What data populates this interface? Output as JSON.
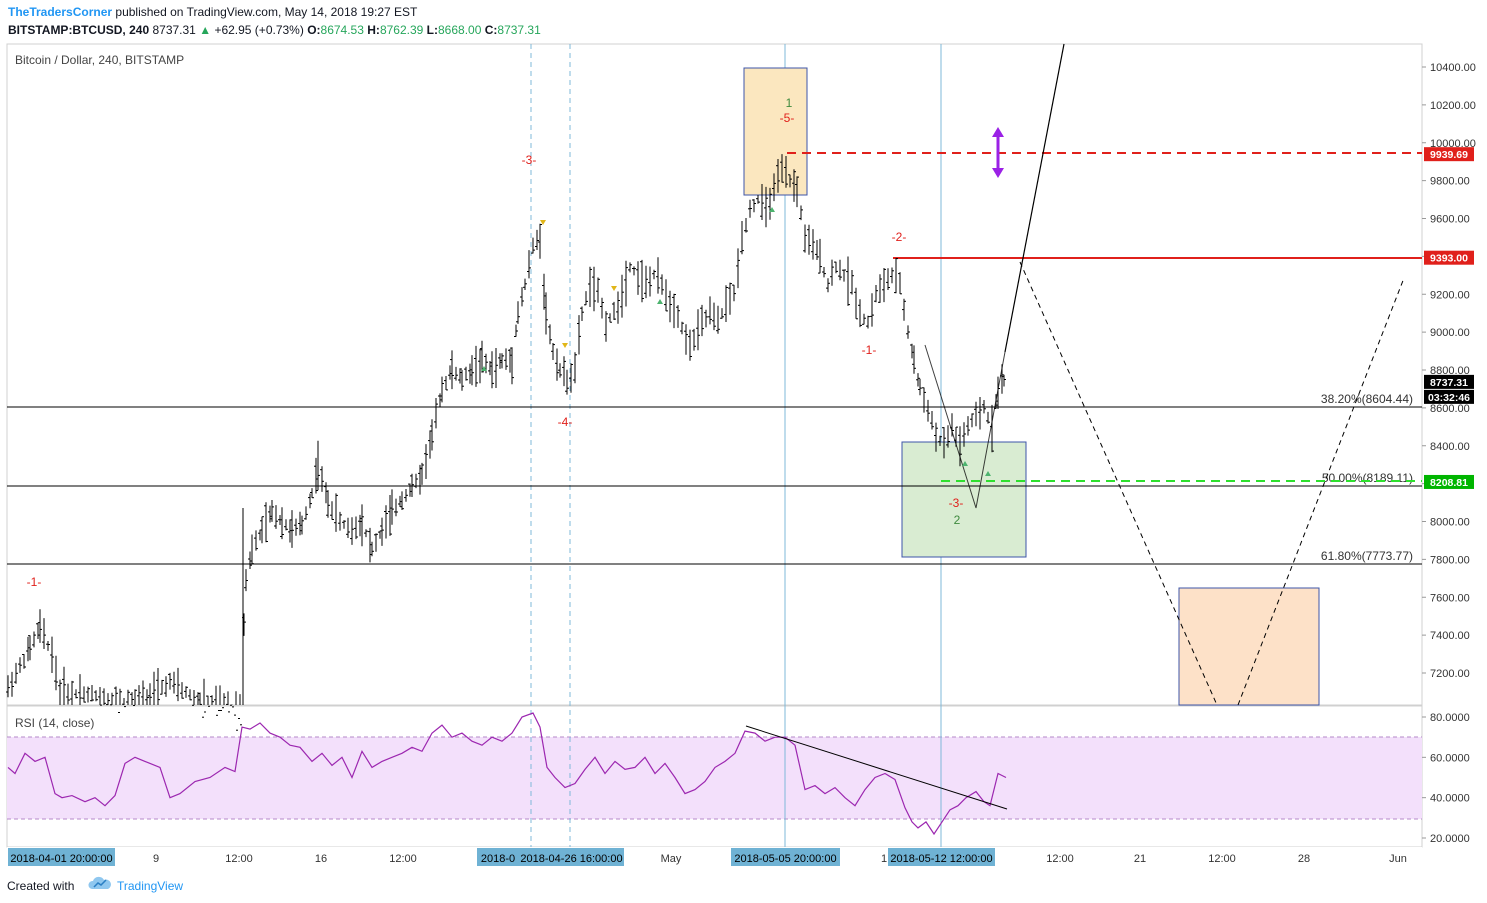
{
  "header": {
    "author": "TheTradersCorner",
    "published_text": "published on TradingView.com, May 14, 2018 19:27 EST",
    "symbol": "BITSTAMP:BTCUSD, 240",
    "last": "8737.31",
    "change_arrow": "▲",
    "change": "+62.95 (+0.73%)",
    "o_label": "O:",
    "o_value": "8674.53",
    "h_label": "H:",
    "h_value": "8762.39",
    "l_label": "L:",
    "l_value": "8668.00",
    "c_label": "C:",
    "c_value": "8737.31"
  },
  "chart_data": {
    "type": "ohlc",
    "title": "Bitcoin / Dollar, 240, BITSTAMP",
    "rsi_title": "RSI (14, close)",
    "y_ticks": [
      "10400.00",
      "10200.00",
      "10000.00",
      "9800.00",
      "9600.00",
      "9400.00",
      "9200.00",
      "9000.00",
      "8800.00",
      "8600.00",
      "8400.00",
      "8200.00",
      "8000.00",
      "7800.00",
      "7600.00",
      "7400.00",
      "7200.00"
    ],
    "rsi_ticks": [
      "80.0000",
      "60.0000",
      "40.0000",
      "20.0000"
    ],
    "x_ticks": [
      "9",
      "12:00",
      "16",
      "12:00",
      "May",
      "1",
      "12:00",
      "21",
      "12:00",
      "28",
      "Jun"
    ],
    "x_highlight_labels": [
      "2018-04-01 20:00:00",
      "2018-0",
      "2018-04-26 16:00:00",
      "2018-05-05 20:00:00",
      "2018-05-12 12:00:00"
    ],
    "ylim": [
      7120,
      10500
    ],
    "rsi_ylim": [
      15,
      85
    ],
    "rsi_band": [
      30,
      70
    ],
    "price_tags": [
      {
        "value": 9939.69,
        "label": "9939.69",
        "color": "#e0201b"
      },
      {
        "value": 9393.0,
        "label": "9393.00",
        "color": "#e0201b"
      },
      {
        "value": 8737.31,
        "label": "8737.31",
        "color": "#000000"
      },
      {
        "value": 8208.81,
        "label": "8208.81",
        "color": "#00b500"
      }
    ],
    "countdown": "03:32:46",
    "fib_levels": [
      {
        "label": "38.20%(8604.44)",
        "value": 8604.44
      },
      {
        "label": "50.00%(8189.11)",
        "value": 8189.11
      },
      {
        "label": "61.80%(7773.77)",
        "value": 7773.77
      }
    ],
    "wave_labels": [
      "-1-",
      "-3-",
      "-4-",
      "1",
      "-5-",
      "-2-",
      "-1-",
      "-3-",
      "2",
      "-1-"
    ],
    "colors": {
      "up": "#26a65b",
      "down": "#e0201b",
      "rsi_line": "#9c27b0",
      "rsi_band": "#f3e0fb",
      "fib": "#000000",
      "accent": "#2196f3"
    }
  },
  "footer": {
    "created_with": "Created with",
    "brand": "TradingView",
    "logo_icon": "tradingview-cloud-icon"
  }
}
